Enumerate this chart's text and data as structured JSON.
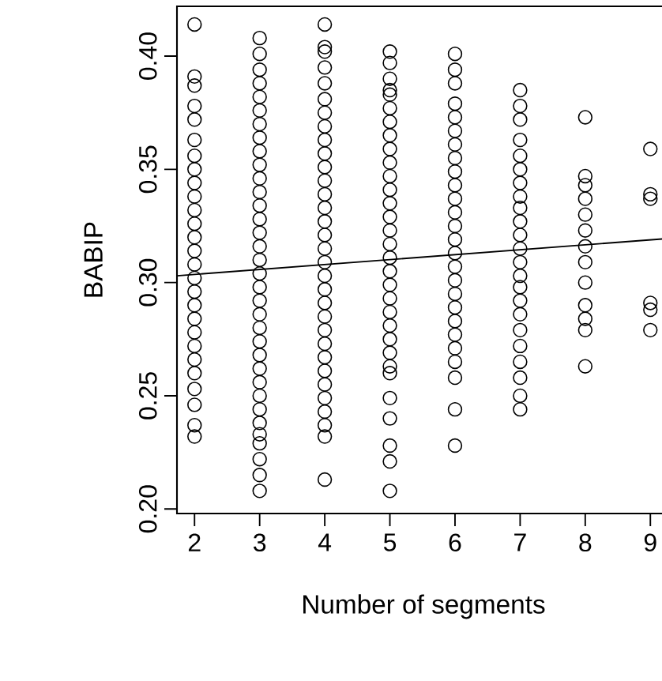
{
  "chart_data": {
    "type": "scatter",
    "xlabel": "Number of segments",
    "ylabel": "BABIP",
    "xlim": [
      1.73,
      9.3
    ],
    "ylim": [
      0.198,
      0.422
    ],
    "xticks": [
      2,
      3,
      4,
      5,
      6,
      7,
      8,
      9
    ],
    "yticks": [
      {
        "value": 0.2,
        "label": "0.20"
      },
      {
        "value": 0.25,
        "label": "0.25"
      },
      {
        "value": 0.3,
        "label": "0.30"
      },
      {
        "value": 0.35,
        "label": "0.35"
      },
      {
        "value": 0.4,
        "label": "0.40"
      }
    ],
    "marker": "circle",
    "series": [
      {
        "color": "#000000",
        "x": [
          2,
          2,
          2,
          2,
          2,
          2,
          2,
          2,
          2,
          2,
          2,
          2,
          2,
          2,
          2,
          2,
          2,
          2,
          2,
          2,
          2,
          2,
          2,
          2,
          2,
          2,
          2
        ],
        "values": [
          0.414,
          0.391,
          0.387,
          0.378,
          0.372,
          0.363,
          0.356,
          0.35,
          0.344,
          0.338,
          0.332,
          0.326,
          0.32,
          0.314,
          0.308,
          0.302,
          0.296,
          0.29,
          0.284,
          0.278,
          0.272,
          0.266,
          0.26,
          0.253,
          0.246,
          0.237,
          0.232
        ]
      },
      {
        "color": "#000000",
        "x": [
          3,
          3,
          3,
          3,
          3,
          3,
          3,
          3,
          3,
          3,
          3,
          3,
          3,
          3,
          3,
          3,
          3,
          3,
          3,
          3,
          3,
          3,
          3,
          3,
          3,
          3,
          3,
          3,
          3,
          3,
          3,
          3,
          3,
          3
        ],
        "values": [
          0.408,
          0.401,
          0.394,
          0.388,
          0.382,
          0.376,
          0.37,
          0.364,
          0.358,
          0.352,
          0.346,
          0.34,
          0.334,
          0.328,
          0.322,
          0.316,
          0.31,
          0.304,
          0.298,
          0.292,
          0.286,
          0.28,
          0.274,
          0.268,
          0.262,
          0.256,
          0.25,
          0.244,
          0.238,
          0.233,
          0.229,
          0.222,
          0.215,
          0.208
        ]
      },
      {
        "color": "#000000",
        "x": [
          4,
          4,
          4,
          4,
          4,
          4,
          4,
          4,
          4,
          4,
          4,
          4,
          4,
          4,
          4,
          4,
          4,
          4,
          4,
          4,
          4,
          4,
          4,
          4,
          4,
          4,
          4,
          4,
          4,
          4,
          4,
          4
        ],
        "values": [
          0.414,
          0.404,
          0.402,
          0.395,
          0.388,
          0.381,
          0.375,
          0.369,
          0.363,
          0.357,
          0.351,
          0.345,
          0.339,
          0.333,
          0.327,
          0.321,
          0.315,
          0.309,
          0.303,
          0.297,
          0.291,
          0.285,
          0.279,
          0.273,
          0.267,
          0.261,
          0.255,
          0.249,
          0.243,
          0.237,
          0.232,
          0.213
        ]
      },
      {
        "color": "#000000",
        "x": [
          5,
          5,
          5,
          5,
          5,
          5,
          5,
          5,
          5,
          5,
          5,
          5,
          5,
          5,
          5,
          5,
          5,
          5,
          5,
          5,
          5,
          5,
          5,
          5,
          5,
          5,
          5,
          5,
          5,
          5,
          5
        ],
        "values": [
          0.402,
          0.397,
          0.39,
          0.385,
          0.383,
          0.377,
          0.371,
          0.365,
          0.359,
          0.353,
          0.347,
          0.341,
          0.335,
          0.329,
          0.323,
          0.317,
          0.311,
          0.305,
          0.299,
          0.293,
          0.287,
          0.281,
          0.275,
          0.269,
          0.263,
          0.26,
          0.249,
          0.24,
          0.228,
          0.221,
          0.208
        ]
      },
      {
        "color": "#000000",
        "x": [
          6,
          6,
          6,
          6,
          6,
          6,
          6,
          6,
          6,
          6,
          6,
          6,
          6,
          6,
          6,
          6,
          6,
          6,
          6,
          6,
          6,
          6,
          6,
          6,
          6,
          6
        ],
        "values": [
          0.401,
          0.394,
          0.388,
          0.379,
          0.373,
          0.367,
          0.361,
          0.355,
          0.349,
          0.343,
          0.337,
          0.331,
          0.325,
          0.319,
          0.313,
          0.307,
          0.301,
          0.295,
          0.289,
          0.283,
          0.277,
          0.271,
          0.265,
          0.258,
          0.244,
          0.228
        ]
      },
      {
        "color": "#000000",
        "x": [
          7,
          7,
          7,
          7,
          7,
          7,
          7,
          7,
          7,
          7,
          7,
          7,
          7,
          7,
          7,
          7,
          7,
          7,
          7,
          7,
          7,
          7,
          7
        ],
        "values": [
          0.385,
          0.378,
          0.372,
          0.363,
          0.356,
          0.35,
          0.344,
          0.338,
          0.333,
          0.327,
          0.321,
          0.315,
          0.309,
          0.303,
          0.298,
          0.292,
          0.286,
          0.279,
          0.272,
          0.265,
          0.258,
          0.25,
          0.244
        ]
      },
      {
        "color": "#000000",
        "x": [
          8,
          8,
          8,
          8,
          8,
          8,
          8,
          8,
          8,
          8,
          8,
          8,
          8
        ],
        "values": [
          0.373,
          0.347,
          0.343,
          0.337,
          0.33,
          0.323,
          0.316,
          0.309,
          0.3,
          0.29,
          0.284,
          0.279,
          0.263
        ]
      },
      {
        "color": "#000000",
        "x": [
          9,
          9,
          9,
          9,
          9,
          9
        ],
        "values": [
          0.359,
          0.339,
          0.337,
          0.291,
          0.288,
          0.279
        ]
      },
      {
        "type": "line",
        "color": "#000000",
        "marker": "none",
        "x": [
          1.73,
          9.3
        ],
        "values": [
          0.303,
          0.3195
        ]
      }
    ]
  }
}
